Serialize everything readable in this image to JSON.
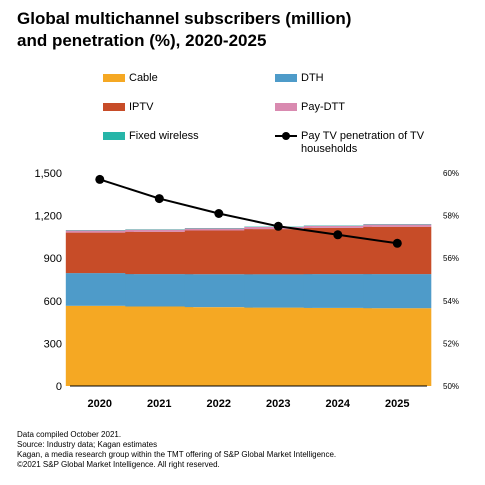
{
  "title_lines": [
    "Global multichannel subscribers (million)",
    "and penetration (%), 2020-2025"
  ],
  "legend": [
    {
      "label": "Cable",
      "color": "#F5A823",
      "kind": "bar"
    },
    {
      "label": "DTH",
      "color": "#4E9BC9",
      "kind": "bar"
    },
    {
      "label": "IPTV",
      "color": "#C74C28",
      "kind": "bar"
    },
    {
      "label": "Pay-DTT",
      "color": "#D98AB0",
      "kind": "bar"
    },
    {
      "label": "Fixed wireless",
      "color": "#26B5A8",
      "kind": "bar"
    },
    {
      "label": "Pay TV penetration of TV households",
      "color": "#000000",
      "kind": "line"
    }
  ],
  "chart_data": {
    "type": "bar",
    "stacked": true,
    "categories": [
      "2020",
      "2021",
      "2022",
      "2023",
      "2024",
      "2025"
    ],
    "series": [
      {
        "name": "Cable",
        "color": "#F5A823",
        "values": [
          565,
          560,
          555,
          552,
          550,
          548
        ]
      },
      {
        "name": "DTH",
        "color": "#4E9BC9",
        "values": [
          230,
          228,
          232,
          235,
          238,
          240
        ]
      },
      {
        "name": "IPTV",
        "color": "#C74C28",
        "values": [
          285,
          298,
          308,
          318,
          325,
          333
        ]
      },
      {
        "name": "Pay-DTT",
        "color": "#D98AB0",
        "values": [
          15,
          15,
          15,
          15,
          15,
          16
        ]
      },
      {
        "name": "Fixed wireless",
        "color": "#26B5A8",
        "values": [
          3,
          3,
          3,
          3,
          3,
          3
        ]
      }
    ],
    "line_series": {
      "name": "Pay TV penetration of TV households",
      "axis": "right",
      "color": "#000000",
      "values": [
        59.7,
        58.8,
        58.1,
        57.5,
        57.1,
        56.7
      ]
    },
    "ylim_left": [
      0,
      1500
    ],
    "yticks_left": [
      0,
      300,
      600,
      900,
      1200,
      1500
    ],
    "yticks_left_labels": [
      "0",
      "300",
      "600",
      "900",
      "1,200",
      "1,500"
    ],
    "ylim_right": [
      50,
      60
    ],
    "yticks_right": [
      50,
      52,
      54,
      56,
      58,
      60
    ],
    "yticks_right_labels": [
      "50%",
      "52%",
      "54%",
      "56%",
      "58%",
      "60%"
    ],
    "grid": false,
    "legend_position": "top"
  },
  "footer_lines": [
    "Data compiled October 2021.",
    "Source: Industry data; Kagan estimates",
    "Kagan, a media research group within the TMT offering of S&P Global Market Intelligence.",
    "©2021 S&P Global Market Intelligence. All right reserved."
  ]
}
